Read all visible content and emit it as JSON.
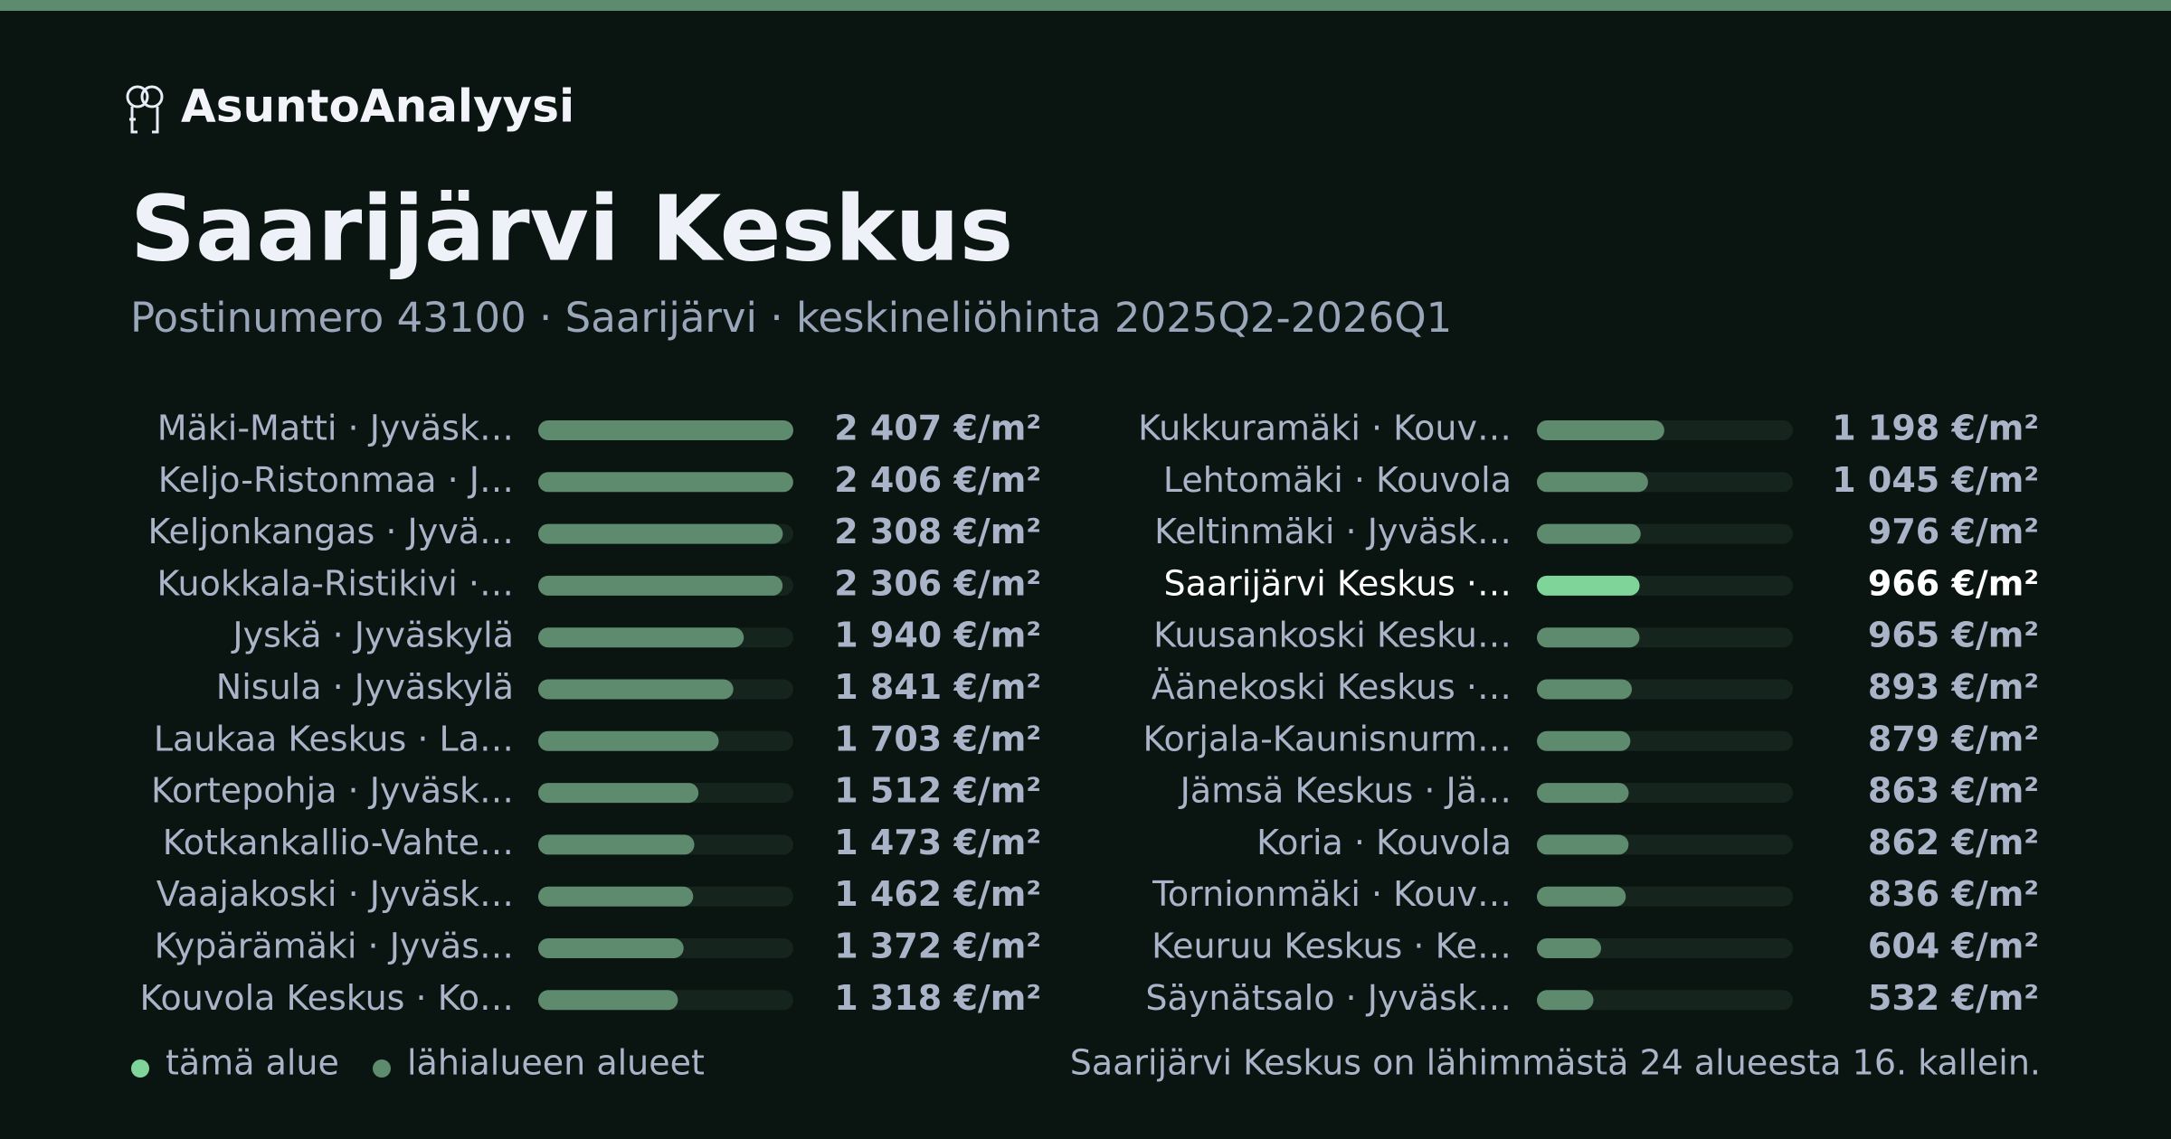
{
  "brand": "AsuntoAnalyysi",
  "chart_data": {
    "type": "bar",
    "orientation": "horizontal",
    "title": "Saarijärvi Keskus",
    "subtitle": "Postinumero 43100 · Saarijärvi · keskineliöhinta 2025Q2-2026Q1",
    "categories": [
      "Mäki-Matti · Jyväsk…",
      "Keljo-Ristonmaa · J…",
      "Keljonkangas · Jyvä…",
      "Kuokkala-Ristikivi ·…",
      "Jyskä · Jyväskylä",
      "Nisula · Jyväskylä",
      "Laukaa Keskus · La…",
      "Kortepohja · Jyväsk…",
      "Kotkankallio-Vahte…",
      "Vaajakoski · Jyväsk…",
      "Kypärämäki · Jyväs…",
      "Kouvola Keskus · Ko…",
      "Kukkuramäki · Kouv…",
      "Lehtomäki · Kouvola",
      "Keltinmäki · Jyväsk…",
      "Saarijärvi Keskus ·…",
      "Kuusankoski Kesku…",
      "Äänekoski Keskus ·…",
      "Korjala-Kaunisnurm…",
      "Jämsä Keskus · Jä…",
      "Koria · Kouvola",
      "Tornionmäki · Kouv…",
      "Keuruu Keskus · Ke…",
      "Säynätsalo · Jyväsk…"
    ],
    "values": [
      2407,
      2406,
      2308,
      2306,
      1940,
      1841,
      1703,
      1512,
      1473,
      1462,
      1372,
      1318,
      1198,
      1045,
      976,
      966,
      965,
      893,
      879,
      863,
      862,
      836,
      604,
      532
    ],
    "value_labels": [
      "2 407 €/m²",
      "2 406 €/m²",
      "2 308 €/m²",
      "2 306 €/m²",
      "1 940 €/m²",
      "1 841 €/m²",
      "1 703 €/m²",
      "1 512 €/m²",
      "1 473 €/m²",
      "1 462 €/m²",
      "1 372 €/m²",
      "1 318 €/m²",
      "1 198 €/m²",
      "1 045 €/m²",
      "976 €/m²",
      "966 €/m²",
      "965 €/m²",
      "893 €/m²",
      "879 €/m²",
      "863 €/m²",
      "862 €/m²",
      "836 €/m²",
      "604 €/m²",
      "532 €/m²"
    ],
    "colors": [
      "#5e8a6e",
      "#5e8a6e",
      "#5e8a6e",
      "#5e8a6e",
      "#5e8a6e",
      "#5e8a6e",
      "#5e8a6e",
      "#5e8a6e",
      "#5e8a6e",
      "#5e8a6e",
      "#5e8a6e",
      "#5e8a6e",
      "#5e8a6e",
      "#5e8a6e",
      "#5e8a6e",
      "#7fd49a",
      "#5e8a6e",
      "#5e8a6e",
      "#5e8a6e",
      "#5e8a6e",
      "#5e8a6e",
      "#5e8a6e",
      "#5e8a6e",
      "#5e8a6e"
    ],
    "xlim": [
      0,
      2407
    ],
    "legend": [
      {
        "name": "tämä alue",
        "color": "#7fd49a"
      },
      {
        "name": "lähialueen alueet",
        "color": "#5e8a6e"
      }
    ],
    "note": "Saarijärvi Keskus on lähimmästä 24 alueesta 16. kallein."
  }
}
